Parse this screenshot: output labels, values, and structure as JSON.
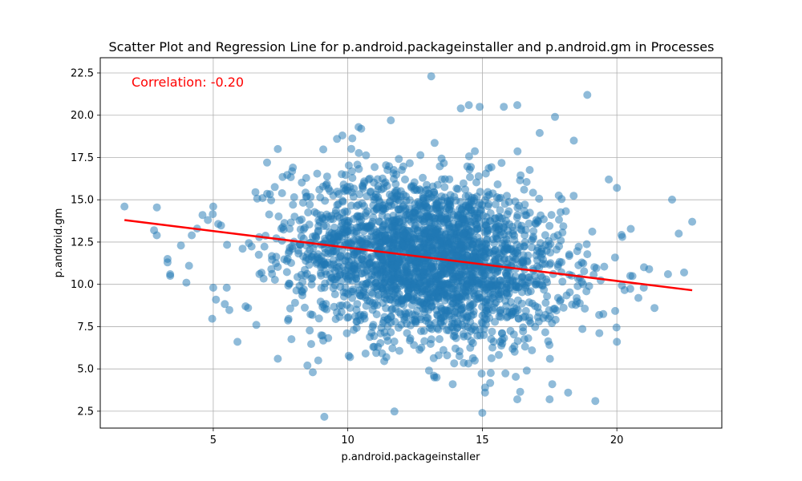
{
  "chart_data": {
    "type": "scatter",
    "title": "Scatter Plot and Regression Line for p.android.packageinstaller and p.android.gm in Processes",
    "xlabel": "p.android.packageinstaller",
    "ylabel": "p.android.gm",
    "xlim": [
      0.8,
      23.9
    ],
    "ylim": [
      1.5,
      23.4
    ],
    "xticks": [
      5,
      10,
      15,
      20
    ],
    "yticks": [
      2.5,
      5.0,
      7.5,
      10.0,
      12.5,
      15.0,
      17.5,
      20.0,
      22.5
    ],
    "xtick_labels": [
      "5",
      "10",
      "15",
      "20"
    ],
    "ytick_labels": [
      "2.5",
      "5.0",
      "7.5",
      "10.0",
      "12.5",
      "15.0",
      "17.5",
      "20.0",
      "22.5"
    ],
    "grid": true,
    "point_color": "#1f77b4",
    "regression_color": "#ff0000",
    "annotation": {
      "text": "Correlation: -0.20",
      "color": "#ff0000",
      "placement": "top-left"
    },
    "regression_line": {
      "x": [
        1.7,
        22.8
      ],
      "y": [
        13.8,
        9.65
      ]
    },
    "cluster": {
      "x_mean": 13.0,
      "x_std": 2.5,
      "y_mean": 11.5,
      "y_std": 2.4
    },
    "points": [
      [
        1.7,
        14.6
      ],
      [
        2.8,
        13.2
      ],
      [
        2.9,
        12.9
      ],
      [
        3.3,
        11.5
      ],
      [
        3.3,
        11.3
      ],
      [
        3.4,
        10.6
      ],
      [
        3.4,
        10.5
      ],
      [
        3.8,
        12.3
      ],
      [
        4.0,
        10.1
      ],
      [
        4.1,
        11.1
      ],
      [
        4.2,
        12.9
      ],
      [
        4.4,
        13.3
      ],
      [
        4.6,
        14.1
      ],
      [
        4.8,
        13.8
      ],
      [
        5.0,
        14.6
      ],
      [
        5.0,
        9.8
      ],
      [
        5.1,
        9.1
      ],
      [
        5.5,
        9.8
      ],
      [
        5.9,
        6.6
      ],
      [
        6.2,
        8.7
      ],
      [
        6.6,
        7.6
      ],
      [
        7.0,
        17.2
      ],
      [
        7.4,
        18.0
      ],
      [
        7.4,
        5.6
      ],
      [
        8.5,
        5.2
      ],
      [
        8.7,
        4.8
      ],
      [
        8.9,
        5.5
      ],
      [
        9.6,
        18.6
      ],
      [
        9.8,
        18.8
      ],
      [
        10.4,
        19.3
      ],
      [
        10.5,
        19.2
      ],
      [
        11.6,
        19.7
      ],
      [
        13.1,
        22.3
      ],
      [
        13.2,
        4.6
      ],
      [
        13.3,
        4.5
      ],
      [
        13.9,
        4.1
      ],
      [
        14.2,
        20.4
      ],
      [
        14.5,
        20.6
      ],
      [
        14.9,
        20.5
      ],
      [
        15.1,
        3.9
      ],
      [
        15.1,
        3.6
      ],
      [
        15.0,
        2.4
      ],
      [
        15.8,
        20.5
      ],
      [
        16.3,
        20.6
      ],
      [
        16.3,
        3.2
      ],
      [
        17.5,
        3.2
      ],
      [
        17.6,
        4.1
      ],
      [
        17.7,
        19.9
      ],
      [
        18.4,
        18.5
      ],
      [
        18.9,
        21.2
      ],
      [
        19.2,
        3.1
      ],
      [
        19.7,
        16.2
      ],
      [
        20.0,
        15.7
      ],
      [
        20.0,
        6.6
      ],
      [
        20.2,
        12.8
      ],
      [
        20.5,
        10.5
      ],
      [
        20.8,
        9.2
      ],
      [
        21.0,
        9.8
      ],
      [
        21.2,
        10.9
      ],
      [
        21.4,
        8.6
      ],
      [
        21.9,
        10.6
      ],
      [
        22.3,
        13.0
      ],
      [
        22.5,
        10.7
      ],
      [
        22.8,
        13.7
      ]
    ]
  }
}
